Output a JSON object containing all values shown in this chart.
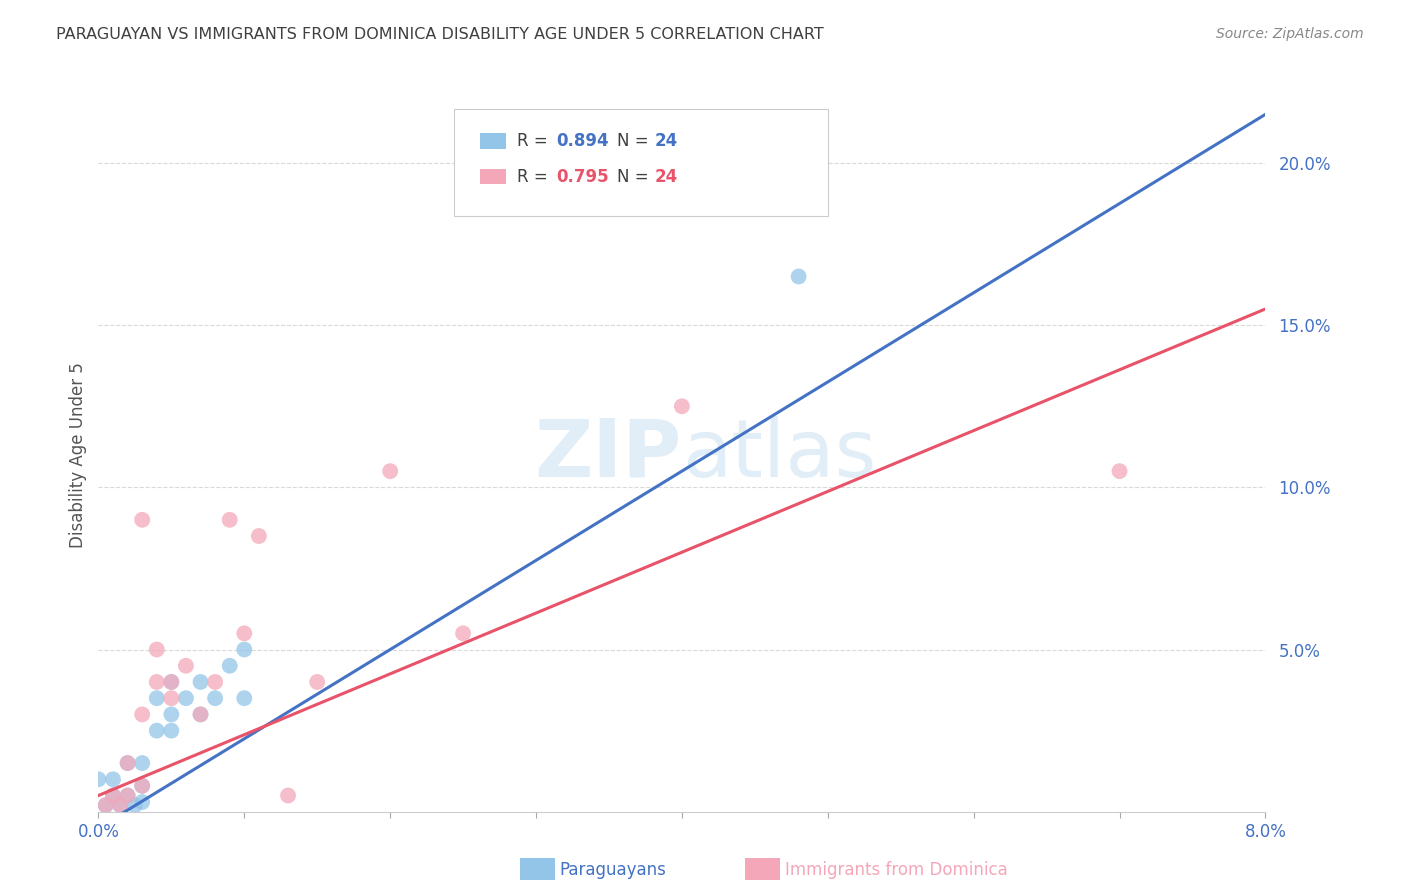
{
  "title": "PARAGUAYAN VS IMMIGRANTS FROM DOMINICA DISABILITY AGE UNDER 5 CORRELATION CHART",
  "source": "Source: ZipAtlas.com",
  "ylabel": "Disability Age Under 5",
  "xlabel_blue": "Paraguayans",
  "xlabel_pink": "Immigrants from Dominica",
  "x_min": 0.0,
  "x_max": 0.08,
  "y_min": 0.0,
  "y_max": 0.22,
  "y_ticks": [
    0.05,
    0.1,
    0.15,
    0.2
  ],
  "y_tick_labels": [
    "5.0%",
    "10.0%",
    "15.0%",
    "20.0%"
  ],
  "x_ticks": [
    0.0,
    0.01,
    0.02,
    0.03,
    0.04,
    0.05,
    0.06,
    0.07,
    0.08
  ],
  "x_tick_labels": [
    "0.0%",
    "",
    "",
    "",
    "",
    "",
    "",
    "",
    "8.0%"
  ],
  "blue_R": "0.894",
  "blue_N": "24",
  "pink_R": "0.795",
  "pink_N": "24",
  "blue_color": "#92c5e8",
  "pink_color": "#f4a7b9",
  "blue_line_color": "#4472c4",
  "pink_line_color": "#e8536a",
  "legend_blue_text_color": "#4472c4",
  "legend_pink_text_color": "#e8536a",
  "watermark_color": "#c5dff0",
  "blue_scatter_x": [
    0.0005,
    0.001,
    0.001,
    0.0015,
    0.002,
    0.002,
    0.0025,
    0.003,
    0.003,
    0.003,
    0.004,
    0.004,
    0.005,
    0.005,
    0.005,
    0.006,
    0.007,
    0.007,
    0.008,
    0.009,
    0.01,
    0.01,
    0.048,
    0.0
  ],
  "blue_scatter_y": [
    0.002,
    0.005,
    0.01,
    0.002,
    0.005,
    0.015,
    0.002,
    0.003,
    0.008,
    0.015,
    0.025,
    0.035,
    0.025,
    0.03,
    0.04,
    0.035,
    0.03,
    0.04,
    0.035,
    0.045,
    0.035,
    0.05,
    0.165,
    0.01
  ],
  "pink_scatter_x": [
    0.0005,
    0.001,
    0.0015,
    0.002,
    0.002,
    0.003,
    0.003,
    0.004,
    0.004,
    0.005,
    0.005,
    0.006,
    0.007,
    0.008,
    0.009,
    0.01,
    0.011,
    0.013,
    0.015,
    0.02,
    0.025,
    0.04,
    0.07,
    0.003
  ],
  "pink_scatter_y": [
    0.002,
    0.005,
    0.002,
    0.005,
    0.015,
    0.008,
    0.03,
    0.04,
    0.05,
    0.035,
    0.04,
    0.045,
    0.03,
    0.04,
    0.09,
    0.055,
    0.085,
    0.005,
    0.04,
    0.105,
    0.055,
    0.125,
    0.105,
    0.09
  ],
  "blue_line_x": [
    0.0,
    0.08
  ],
  "blue_line_y": [
    -0.005,
    0.215
  ],
  "pink_line_x": [
    0.0,
    0.08
  ],
  "pink_line_y": [
    0.005,
    0.155
  ],
  "background_color": "#ffffff",
  "grid_color": "#d9d9d9",
  "title_color": "#404040",
  "tick_label_color": "#4472c4"
}
